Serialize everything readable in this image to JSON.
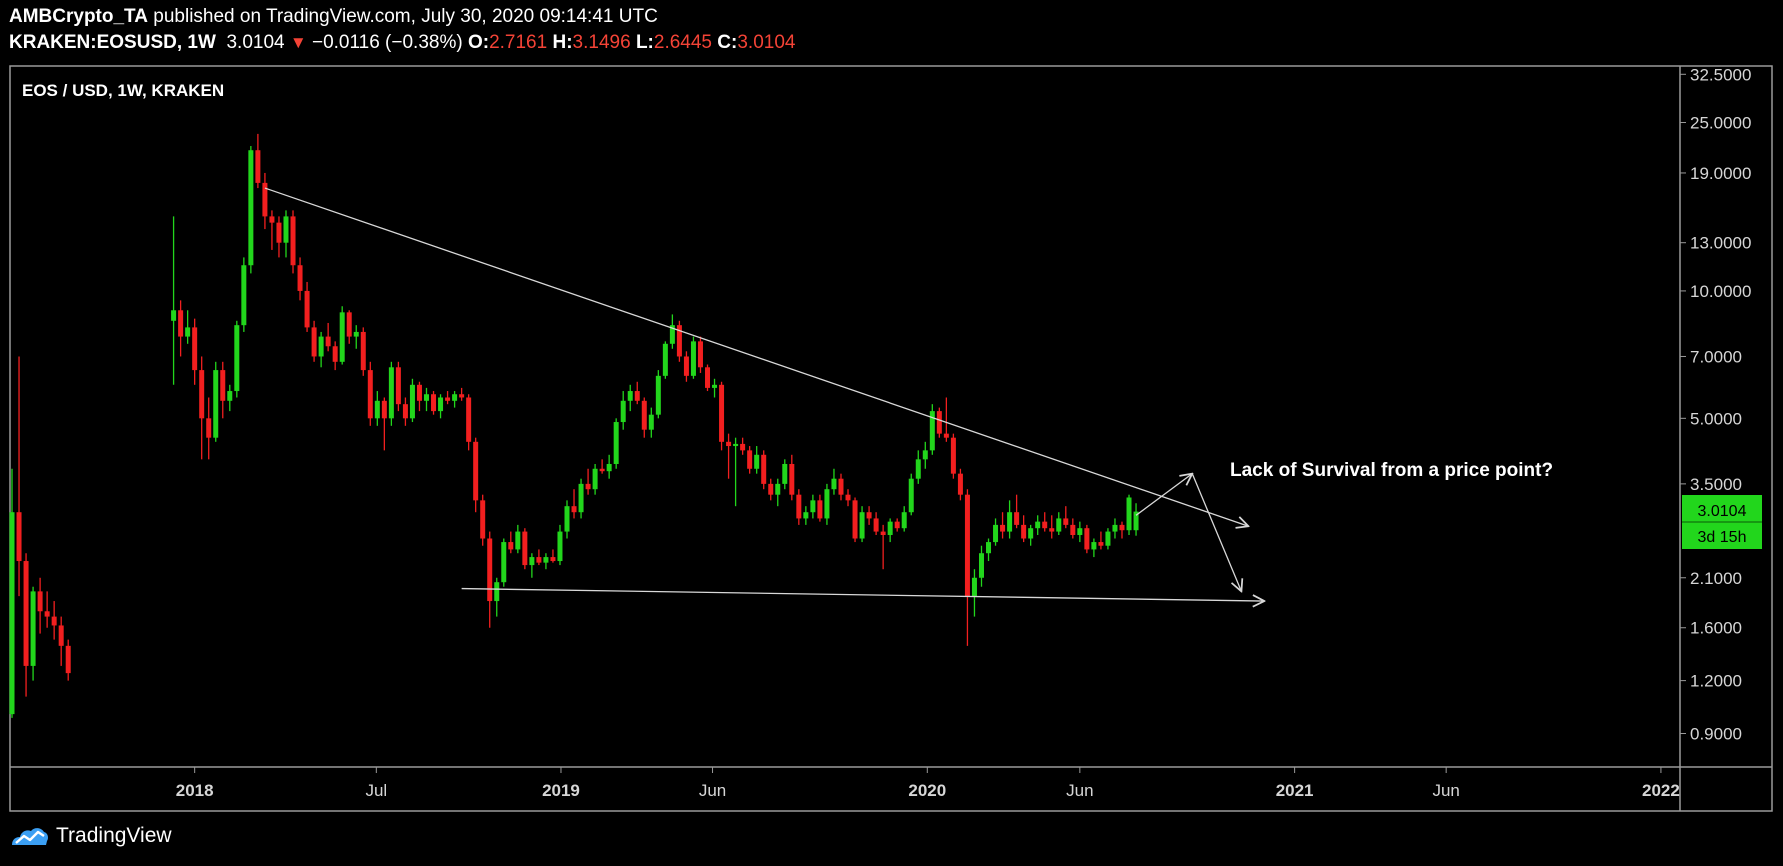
{
  "header": {
    "publisher": "AMBCrypto_TA",
    "published_text": "published on TradingView.com, July 30, 2020 09:14:41 UTC",
    "symbol": "KRAKEN:EOSUSD, 1W",
    "last": "3.0104",
    "change": "−0.0116 (−0.38%)",
    "o_label": "O:",
    "o_val": "2.7161",
    "h_label": "H:",
    "h_val": "3.1496",
    "l_label": "L:",
    "l_val": "2.6445",
    "c_label": "C:",
    "c_val": "3.0104"
  },
  "chart_title": "EOS / USD, 1W, KRAKEN",
  "annotation": "Lack of Survival from a price point?",
  "price_tag": {
    "price": "3.0104",
    "countdown": "3d 15h"
  },
  "footer": {
    "brand": "TradingView"
  },
  "colors": {
    "up": "#22d61c",
    "down": "#f21f1f",
    "line": "#d8d8d8",
    "tag": "#22d61c"
  },
  "chart_data": {
    "type": "candlestick",
    "title": "EOS / USD, 1W, KRAKEN",
    "y_scale": "log",
    "ylim": [
      0.75,
      34
    ],
    "xlim": [
      "2017-07-01",
      "2022-01-20"
    ],
    "y_ticks": [
      {
        "v": 32.5,
        "label": "32.5000"
      },
      {
        "v": 25,
        "label": "25.0000"
      },
      {
        "v": 19,
        "label": "19.0000"
      },
      {
        "v": 13,
        "label": "13.0000"
      },
      {
        "v": 10,
        "label": "10.0000"
      },
      {
        "v": 7,
        "label": "7.0000"
      },
      {
        "v": 5,
        "label": "5.0000"
      },
      {
        "v": 3.5,
        "label": "3.5000"
      },
      {
        "v": 2.1,
        "label": "2.1000"
      },
      {
        "v": 1.6,
        "label": "1.6000"
      },
      {
        "v": 1.2,
        "label": "1.2000"
      },
      {
        "v": 0.9,
        "label": "0.9000"
      }
    ],
    "x_ticks": [
      {
        "d": "2018-01-01",
        "label": "2018",
        "bold": true
      },
      {
        "d": "2018-07-01",
        "label": "Jul",
        "bold": false
      },
      {
        "d": "2019-01-01",
        "label": "2019",
        "bold": true
      },
      {
        "d": "2019-06-01",
        "label": "Jun",
        "bold": false
      },
      {
        "d": "2020-01-01",
        "label": "2020",
        "bold": true
      },
      {
        "d": "2020-06-01",
        "label": "Jun",
        "bold": false
      },
      {
        "d": "2021-01-01",
        "label": "2021",
        "bold": true
      },
      {
        "d": "2021-06-01",
        "label": "Jun",
        "bold": false
      },
      {
        "d": "2022-01-01",
        "label": "2022",
        "bold": true
      }
    ],
    "candles": [
      [
        "2017-07-03",
        1.0,
        3.8,
        0.98,
        3.0
      ],
      [
        "2017-07-10",
        3.0,
        7.0,
        1.9,
        2.3
      ],
      [
        "2017-07-17",
        2.3,
        2.4,
        1.1,
        1.3
      ],
      [
        "2017-07-24",
        1.3,
        2.0,
        1.2,
        1.95
      ],
      [
        "2017-07-31",
        1.95,
        2.1,
        1.55,
        1.75
      ],
      [
        "2017-08-07",
        1.75,
        1.95,
        1.6,
        1.7
      ],
      [
        "2017-08-14",
        1.7,
        1.85,
        1.5,
        1.62
      ],
      [
        "2017-08-21",
        1.62,
        1.7,
        1.3,
        1.45
      ],
      [
        "2017-08-28",
        1.45,
        1.5,
        1.2,
        1.25
      ],
      [
        "2017-12-11",
        8.5,
        15.0,
        6.0,
        9.0
      ],
      [
        "2017-12-18",
        9.0,
        9.5,
        7.0,
        7.8
      ],
      [
        "2017-12-25",
        7.8,
        9.0,
        7.5,
        8.2
      ],
      [
        "2018-01-01",
        8.2,
        8.6,
        6.0,
        6.5
      ],
      [
        "2018-01-08",
        6.5,
        7.0,
        4.0,
        5.0
      ],
      [
        "2018-01-15",
        5.0,
        5.6,
        4.0,
        4.5
      ],
      [
        "2018-01-22",
        4.5,
        6.8,
        4.4,
        6.5
      ],
      [
        "2018-01-29",
        6.5,
        6.8,
        5.0,
        5.5
      ],
      [
        "2018-02-05",
        5.5,
        6.0,
        5.2,
        5.8
      ],
      [
        "2018-02-12",
        5.8,
        8.5,
        5.6,
        8.3
      ],
      [
        "2018-02-19",
        8.3,
        12.0,
        8.0,
        11.5
      ],
      [
        "2018-02-26",
        11.5,
        22.0,
        11.0,
        21.5
      ],
      [
        "2018-03-05",
        21.5,
        23.5,
        17.5,
        18.0
      ],
      [
        "2018-03-12",
        18.0,
        19.0,
        14.0,
        15.0
      ],
      [
        "2018-03-19",
        15.0,
        15.5,
        12.5,
        14.5
      ],
      [
        "2018-03-26",
        14.5,
        15.0,
        12.0,
        13.0
      ],
      [
        "2018-04-02",
        13.0,
        15.5,
        12.0,
        15.0
      ],
      [
        "2018-04-09",
        15.0,
        15.5,
        11.0,
        11.5
      ],
      [
        "2018-04-16",
        11.5,
        12.0,
        9.5,
        10.0
      ],
      [
        "2018-04-23",
        10.0,
        10.5,
        8.0,
        8.2
      ],
      [
        "2018-04-30",
        8.2,
        8.5,
        6.8,
        7.0
      ],
      [
        "2018-05-07",
        7.0,
        8.0,
        6.6,
        7.8
      ],
      [
        "2018-05-14",
        7.8,
        8.4,
        7.2,
        7.4
      ],
      [
        "2018-05-21",
        7.4,
        7.6,
        6.5,
        6.8
      ],
      [
        "2018-05-28",
        6.8,
        9.2,
        6.7,
        8.9
      ],
      [
        "2018-06-04",
        8.9,
        9.0,
        7.5,
        7.8
      ],
      [
        "2018-06-11",
        7.8,
        8.3,
        7.3,
        8.0
      ],
      [
        "2018-06-18",
        8.0,
        8.2,
        6.3,
        6.5
      ],
      [
        "2018-06-25",
        6.5,
        6.8,
        4.8,
        5.0
      ],
      [
        "2018-07-02",
        5.0,
        5.8,
        4.8,
        5.5
      ],
      [
        "2018-07-09",
        5.5,
        5.6,
        4.2,
        5.0
      ],
      [
        "2018-07-16",
        5.0,
        6.8,
        4.8,
        6.6
      ],
      [
        "2018-07-23",
        6.6,
        6.8,
        5.2,
        5.4
      ],
      [
        "2018-07-30",
        5.4,
        5.6,
        4.8,
        5.0
      ],
      [
        "2018-08-06",
        5.0,
        6.2,
        4.9,
        6.0
      ],
      [
        "2018-08-13",
        6.0,
        6.1,
        5.2,
        5.5
      ],
      [
        "2018-08-20",
        5.5,
        5.9,
        5.2,
        5.7
      ],
      [
        "2018-08-27",
        5.7,
        5.8,
        5.1,
        5.2
      ],
      [
        "2018-09-03",
        5.2,
        5.7,
        5.0,
        5.6
      ],
      [
        "2018-09-10",
        5.6,
        5.8,
        5.4,
        5.5
      ],
      [
        "2018-09-17",
        5.5,
        5.8,
        5.3,
        5.7
      ],
      [
        "2018-09-24",
        5.7,
        5.9,
        5.5,
        5.6
      ],
      [
        "2018-10-01",
        5.6,
        5.7,
        4.2,
        4.4
      ],
      [
        "2018-10-08",
        4.4,
        4.5,
        3.0,
        3.2
      ],
      [
        "2018-10-15",
        3.2,
        3.3,
        2.5,
        2.6
      ],
      [
        "2018-10-22",
        2.6,
        2.7,
        1.6,
        1.85
      ],
      [
        "2018-10-29",
        1.85,
        2.1,
        1.7,
        2.05
      ],
      [
        "2018-11-05",
        2.05,
        2.6,
        2.0,
        2.55
      ],
      [
        "2018-11-12",
        2.55,
        2.7,
        2.4,
        2.45
      ],
      [
        "2018-11-19",
        2.45,
        2.8,
        2.4,
        2.7
      ],
      [
        "2018-11-26",
        2.7,
        2.75,
        2.2,
        2.25
      ],
      [
        "2018-12-03",
        2.25,
        2.4,
        2.1,
        2.35
      ],
      [
        "2018-12-10",
        2.35,
        2.45,
        2.25,
        2.28
      ],
      [
        "2018-12-17",
        2.28,
        2.4,
        2.2,
        2.35
      ],
      [
        "2018-12-24",
        2.35,
        2.45,
        2.28,
        2.3
      ],
      [
        "2018-12-31",
        2.3,
        2.8,
        2.25,
        2.7
      ],
      [
        "2019-01-07",
        2.7,
        3.2,
        2.6,
        3.1
      ],
      [
        "2019-01-14",
        3.1,
        3.4,
        2.9,
        3.0
      ],
      [
        "2019-01-21",
        3.0,
        3.6,
        2.9,
        3.5
      ],
      [
        "2019-01-28",
        3.5,
        3.8,
        3.3,
        3.4
      ],
      [
        "2019-02-04",
        3.4,
        3.9,
        3.3,
        3.8
      ],
      [
        "2019-02-11",
        3.8,
        4.0,
        3.7,
        3.75
      ],
      [
        "2019-02-18",
        3.75,
        4.1,
        3.6,
        3.9
      ],
      [
        "2019-02-25",
        3.9,
        5.0,
        3.8,
        4.9
      ],
      [
        "2019-03-04",
        4.9,
        5.8,
        4.7,
        5.5
      ],
      [
        "2019-03-11",
        5.5,
        6.0,
        5.2,
        5.8
      ],
      [
        "2019-03-18",
        5.8,
        6.1,
        5.4,
        5.5
      ],
      [
        "2019-03-25",
        5.5,
        5.6,
        4.5,
        4.7
      ],
      [
        "2019-04-01",
        4.7,
        5.3,
        4.5,
        5.1
      ],
      [
        "2019-04-08",
        5.1,
        6.5,
        5.0,
        6.3
      ],
      [
        "2019-04-15",
        6.3,
        7.6,
        6.2,
        7.5
      ],
      [
        "2019-04-22",
        7.5,
        8.8,
        7.3,
        8.3
      ],
      [
        "2019-04-29",
        8.3,
        8.5,
        6.8,
        7.0
      ],
      [
        "2019-05-06",
        7.0,
        7.2,
        6.1,
        6.3
      ],
      [
        "2019-05-13",
        6.3,
        7.8,
        6.2,
        7.6
      ],
      [
        "2019-05-20",
        7.6,
        7.8,
        6.4,
        6.6
      ],
      [
        "2019-05-27",
        6.6,
        6.7,
        5.8,
        5.9
      ],
      [
        "2019-06-03",
        5.9,
        6.2,
        5.6,
        6.0
      ],
      [
        "2019-06-10",
        6.0,
        6.1,
        4.2,
        4.4
      ],
      [
        "2019-06-17",
        4.4,
        4.6,
        3.6,
        4.3
      ],
      [
        "2019-06-24",
        4.3,
        4.5,
        3.1,
        4.35
      ],
      [
        "2019-07-01",
        4.35,
        4.5,
        4.1,
        4.2
      ],
      [
        "2019-07-08",
        4.2,
        4.3,
        3.7,
        3.8
      ],
      [
        "2019-07-15",
        3.8,
        4.3,
        3.7,
        4.1
      ],
      [
        "2019-07-22",
        4.1,
        4.2,
        3.4,
        3.5
      ],
      [
        "2019-07-29",
        3.5,
        3.6,
        3.2,
        3.3
      ],
      [
        "2019-08-05",
        3.3,
        3.6,
        3.1,
        3.5
      ],
      [
        "2019-08-12",
        3.5,
        4.0,
        3.4,
        3.9
      ],
      [
        "2019-08-19",
        3.9,
        4.1,
        3.2,
        3.3
      ],
      [
        "2019-08-26",
        3.3,
        3.4,
        2.8,
        2.9
      ],
      [
        "2019-09-02",
        2.9,
        3.1,
        2.8,
        3.0
      ],
      [
        "2019-09-09",
        3.0,
        3.3,
        2.9,
        3.2
      ],
      [
        "2019-09-16",
        3.2,
        3.3,
        2.85,
        2.9
      ],
      [
        "2019-09-23",
        2.9,
        3.5,
        2.8,
        3.4
      ],
      [
        "2019-09-30",
        3.4,
        3.8,
        3.3,
        3.6
      ],
      [
        "2019-10-07",
        3.6,
        3.7,
        3.2,
        3.3
      ],
      [
        "2019-10-14",
        3.3,
        3.4,
        3.1,
        3.2
      ],
      [
        "2019-10-21",
        3.2,
        3.25,
        2.55,
        2.6
      ],
      [
        "2019-10-28",
        2.6,
        3.1,
        2.55,
        3.0
      ],
      [
        "2019-11-04",
        3.0,
        3.1,
        2.8,
        2.9
      ],
      [
        "2019-11-11",
        2.9,
        3.0,
        2.65,
        2.7
      ],
      [
        "2019-11-18",
        2.7,
        2.8,
        2.2,
        2.65
      ],
      [
        "2019-11-25",
        2.65,
        2.9,
        2.55,
        2.85
      ],
      [
        "2019-12-02",
        2.85,
        2.9,
        2.7,
        2.75
      ],
      [
        "2019-12-09",
        2.75,
        3.1,
        2.7,
        3.0
      ],
      [
        "2019-12-16",
        3.0,
        3.7,
        2.95,
        3.6
      ],
      [
        "2019-12-23",
        3.6,
        4.2,
        3.5,
        4.0
      ],
      [
        "2019-12-30",
        4.0,
        4.4,
        3.8,
        4.2
      ],
      [
        "2020-01-06",
        4.2,
        5.4,
        4.1,
        5.2
      ],
      [
        "2020-01-13",
        5.2,
        5.3,
        4.5,
        4.6
      ],
      [
        "2020-01-20",
        4.6,
        5.6,
        4.4,
        4.5
      ],
      [
        "2020-01-27",
        4.5,
        4.6,
        3.6,
        3.7
      ],
      [
        "2020-02-03",
        3.7,
        3.8,
        3.2,
        3.3
      ],
      [
        "2020-02-10",
        3.3,
        3.4,
        1.45,
        1.9
      ],
      [
        "2020-02-17",
        1.9,
        2.2,
        1.7,
        2.1
      ],
      [
        "2020-02-24",
        2.1,
        2.5,
        2.0,
        2.4
      ],
      [
        "2020-03-02",
        2.4,
        2.6,
        2.3,
        2.55
      ],
      [
        "2020-03-09",
        2.55,
        2.9,
        2.5,
        2.8
      ],
      [
        "2020-03-16",
        2.8,
        3.0,
        2.6,
        2.7
      ],
      [
        "2020-03-23",
        2.7,
        3.2,
        2.6,
        3.0
      ],
      [
        "2020-03-30",
        3.0,
        3.3,
        2.75,
        2.8
      ],
      [
        "2020-04-06",
        2.8,
        2.95,
        2.55,
        2.6
      ],
      [
        "2020-04-13",
        2.6,
        2.8,
        2.5,
        2.75
      ],
      [
        "2020-04-20",
        2.75,
        2.95,
        2.65,
        2.85
      ],
      [
        "2020-04-27",
        2.85,
        3.0,
        2.7,
        2.75
      ],
      [
        "2020-05-04",
        2.75,
        2.95,
        2.6,
        2.7
      ],
      [
        "2020-05-11",
        2.7,
        3.0,
        2.65,
        2.9
      ],
      [
        "2020-05-18",
        2.9,
        3.1,
        2.75,
        2.8
      ],
      [
        "2020-05-25",
        2.8,
        2.9,
        2.6,
        2.65
      ],
      [
        "2020-06-01",
        2.65,
        2.85,
        2.55,
        2.75
      ],
      [
        "2020-06-08",
        2.75,
        2.8,
        2.4,
        2.45
      ],
      [
        "2020-06-15",
        2.45,
        2.6,
        2.35,
        2.55
      ],
      [
        "2020-06-22",
        2.55,
        2.7,
        2.45,
        2.5
      ],
      [
        "2020-06-29",
        2.5,
        2.75,
        2.45,
        2.7
      ],
      [
        "2020-07-06",
        2.7,
        2.9,
        2.6,
        2.8
      ],
      [
        "2020-07-13",
        2.8,
        2.85,
        2.6,
        2.72
      ],
      [
        "2020-07-20",
        2.72,
        3.3,
        2.65,
        3.25
      ],
      [
        "2020-07-27",
        2.72,
        3.15,
        2.64,
        3.01
      ]
    ],
    "lines": [
      {
        "x1": "2018-03-12",
        "y1": 17.5,
        "x2": "2020-11-16",
        "y2": 2.78,
        "arrow": "end"
      },
      {
        "x1": "2018-09-24",
        "y1": 1.98,
        "x2": "2020-12-02",
        "y2": 1.85,
        "arrow": "end"
      },
      {
        "x1": "2020-07-27",
        "y1": 2.95,
        "x2": "2020-09-21",
        "y2": 3.7,
        "arrow": "end"
      },
      {
        "x1": "2020-09-21",
        "y1": 3.7,
        "x2": "2020-11-09",
        "y2": 1.95,
        "arrow": "end"
      }
    ]
  }
}
